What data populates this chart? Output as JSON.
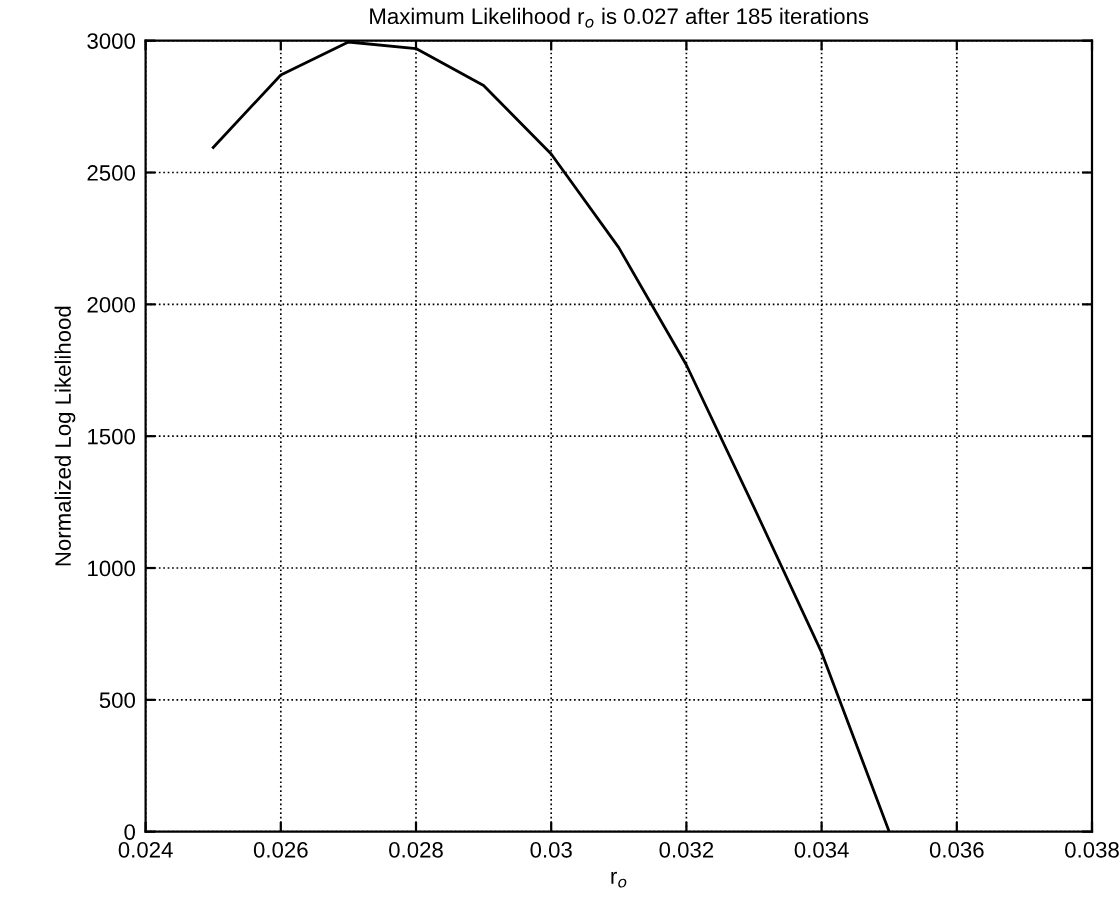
{
  "chart_data": {
    "type": "line",
    "title": "Maximum Likelihood r$_{o}$ is 0.027 after 185 iterations",
    "xlabel": "r$_{o}$",
    "ylabel": "Normalized Log Likelihood",
    "series": [
      {
        "color": "#000000",
        "x": [
          0.025,
          0.026,
          0.027,
          0.028,
          0.029,
          0.03,
          0.031,
          0.032,
          0.033,
          0.034,
          0.035
        ],
        "values": [
          2595,
          2870,
          2995,
          2970,
          2830,
          2570,
          2215,
          1770,
          1230,
          680,
          0
        ]
      }
    ],
    "xlim": [
      0.024,
      0.038
    ],
    "xticks": [
      0.024,
      0.026,
      0.028,
      {
        "value": 0.03,
        "label": "0.03"
      },
      0.032,
      0.034,
      0.036,
      0.038
    ],
    "ylim": [
      0,
      3000
    ],
    "yticks": [
      0,
      500,
      1000,
      1500,
      2000,
      2500,
      3000
    ],
    "grid": true,
    "marker": "none",
    "line_style": "solid"
  }
}
